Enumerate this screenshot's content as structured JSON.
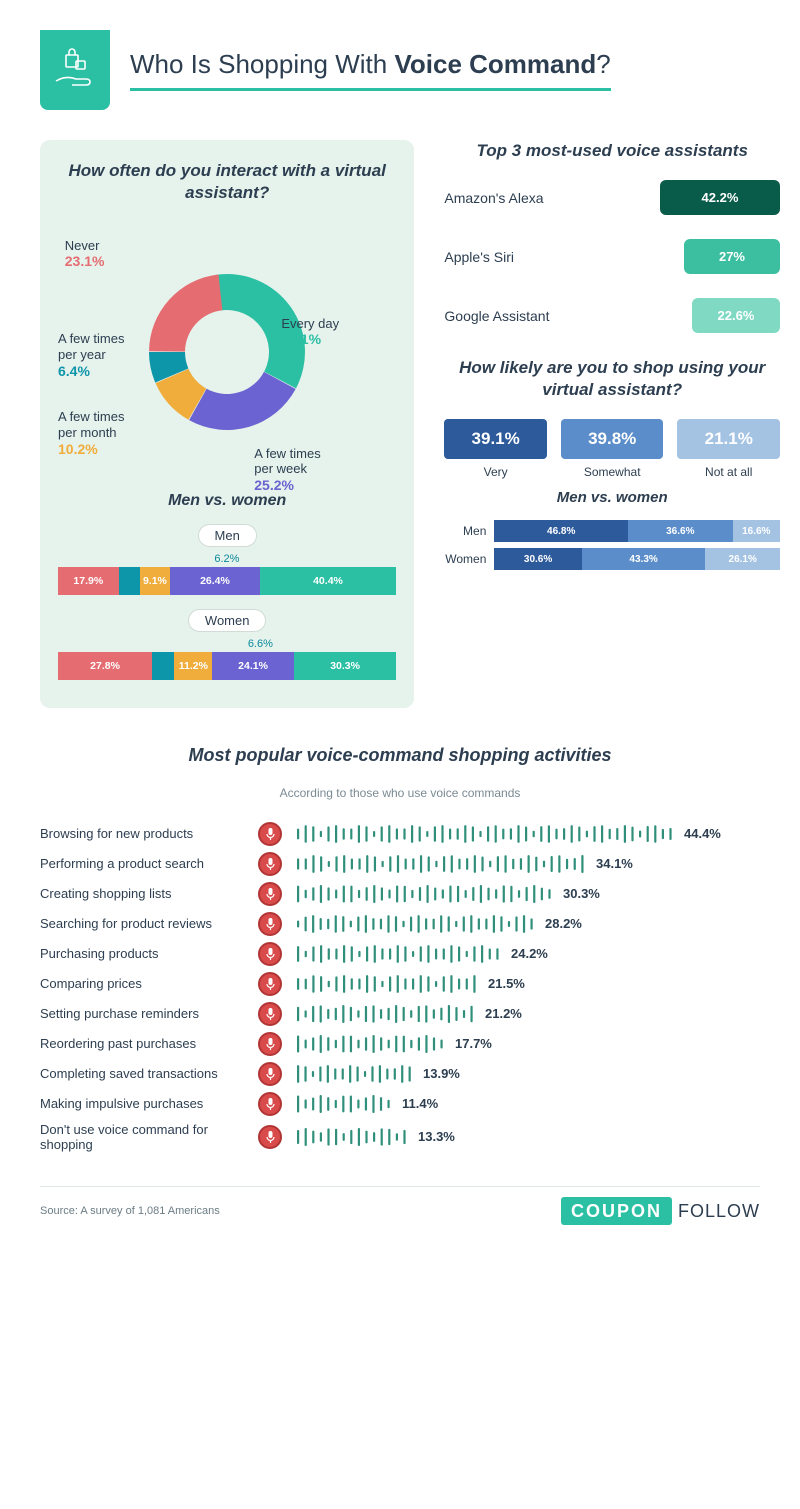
{
  "colors": {
    "brand_teal": "#2bbfa3",
    "dark_teal": "#0a5c4a",
    "med_teal": "#3cbfa1",
    "light_teal": "#7fd9c3",
    "blue_dark": "#2d5a9b",
    "blue_med": "#5a8dc9",
    "blue_light": "#a4c3e3",
    "rose": "#e56d72",
    "cyan": "#0d95aa",
    "amber": "#f0ad3b",
    "violet": "#6a63d1",
    "mic_red": "#d94a4a",
    "wave_on": "#2f8f7a",
    "wave_off": "#c9d6d0",
    "text": "#2c3e50",
    "card_bg": "#e6f2ec"
  },
  "typography": {
    "title_size": 26,
    "section_h_size": 17,
    "body_size": 13
  },
  "header": {
    "title_prefix": "Who Is Shopping With ",
    "title_strong": "Voice Command",
    "title_suffix": "?"
  },
  "interaction_freq": {
    "heading": "How often do you interact with a virtual assistant?",
    "type": "donut",
    "slices": [
      {
        "label": "Every day",
        "value": 35.1,
        "color": "#2bbfa3",
        "label_color": "#2bbfa3"
      },
      {
        "label": "A few times per week",
        "value": 25.2,
        "color": "#6a63d1",
        "label_color": "#6a63d1"
      },
      {
        "label": "A few times per month",
        "value": 10.2,
        "color": "#f0ad3b",
        "label_color": "#f0ad3b"
      },
      {
        "label": "A few times per year",
        "value": 6.4,
        "color": "#0d95aa",
        "label_color": "#0d95aa"
      },
      {
        "label": "Never",
        "value": 23.1,
        "color": "#e56d72",
        "label_color": "#e56d72"
      }
    ],
    "donut_inner_r": 42,
    "donut_outer_r": 78
  },
  "mvw_left": {
    "heading": "Men vs. women",
    "men_label": "Men",
    "women_label": "Women",
    "order_colors": [
      "#e56d72",
      "#0d95aa",
      "#f0ad3b",
      "#6a63d1",
      "#2bbfa3"
    ],
    "men": [
      17.9,
      6.2,
      9.1,
      26.4,
      40.4
    ],
    "women": [
      27.8,
      6.6,
      11.2,
      24.1,
      30.3
    ]
  },
  "top_assistants": {
    "heading": "Top 3 most-used voice assistants",
    "items": [
      {
        "name": "Amazon's Alexa",
        "pct": 42.2,
        "pill_color": "#0a5c4a",
        "pill_width": 120
      },
      {
        "name": "Apple's Siri",
        "pct": 27.0,
        "pill_color": "#3cbfa1",
        "pill_width": 96
      },
      {
        "name": "Google Assistant",
        "pct": 22.6,
        "pill_color": "#7fd9c3",
        "pill_width": 88
      }
    ]
  },
  "likelihood": {
    "heading": "How likely are you to shop using your virtual assistant?",
    "items": [
      {
        "label": "Very",
        "pct": 39.1,
        "color": "#2d5a9b"
      },
      {
        "label": "Somewhat",
        "pct": 39.8,
        "color": "#5a8dc9"
      },
      {
        "label": "Not at all",
        "pct": 21.1,
        "color": "#a4c3e3"
      }
    ],
    "mvw_heading": "Men vs. women",
    "men_label": "Men",
    "women_label": "Women",
    "colors": [
      "#2d5a9b",
      "#5a8dc9",
      "#a4c3e3"
    ],
    "men": [
      46.8,
      36.6,
      16.6
    ],
    "women": [
      30.6,
      43.3,
      26.1
    ]
  },
  "activities": {
    "heading": "Most popular voice-command shopping activities",
    "subheading": "According to those who use voice commands",
    "max_display_pct": 44.4,
    "wave_on_color": "#2f8f7a",
    "wave_off_color": "#c9d6d0",
    "bar_count": 50,
    "items": [
      {
        "label": "Browsing for new products",
        "pct": 44.4
      },
      {
        "label": "Performing a product search",
        "pct": 34.1
      },
      {
        "label": "Creating shopping lists",
        "pct": 30.3
      },
      {
        "label": "Searching for product reviews",
        "pct": 28.2
      },
      {
        "label": "Purchasing products",
        "pct": 24.2
      },
      {
        "label": "Comparing prices",
        "pct": 21.5
      },
      {
        "label": "Setting purchase reminders",
        "pct": 21.2
      },
      {
        "label": "Reordering past purchases",
        "pct": 17.7
      },
      {
        "label": "Completing saved transactions",
        "pct": 13.9
      },
      {
        "label": "Making impulsive purchases",
        "pct": 11.4
      },
      {
        "label": "Don't use voice command for shopping",
        "pct": 13.3
      }
    ]
  },
  "footer": {
    "source": "Source: A survey of 1,081 Americans",
    "logo_left": "COUPON",
    "logo_right": "FOLLOW"
  }
}
